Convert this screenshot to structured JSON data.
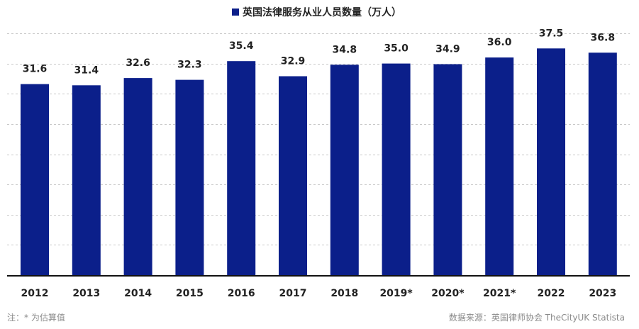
{
  "chart_data": {
    "type": "bar",
    "series": [
      {
        "name": "英国法律服务从业人员数量（万人）",
        "values": [
          31.6,
          31.4,
          32.6,
          32.3,
          35.4,
          32.9,
          34.8,
          35.0,
          34.9,
          36.0,
          37.5,
          36.8
        ]
      }
    ],
    "categories": [
      "2012",
      "2013",
      "2014",
      "2015",
      "2016",
      "2017",
      "2018",
      "2019*",
      "2020*",
      "2021*",
      "2022",
      "2023"
    ],
    "value_labels": [
      "31.6",
      "31.4",
      "32.6",
      "32.3",
      "35.4",
      "32.9",
      "34.8",
      "35.0",
      "34.9",
      "36.0",
      "37.5",
      "36.8"
    ],
    "ylim": [
      0,
      40
    ],
    "grid": true,
    "legend": "top-center",
    "colors": {
      "bar": "#0b1f8a",
      "grid": "#c8c8c8",
      "baseline": "#111111"
    }
  },
  "footer": {
    "note": "注：* 为估算值",
    "source": "数据来源：英国律师协会 TheCityUK Statista"
  }
}
